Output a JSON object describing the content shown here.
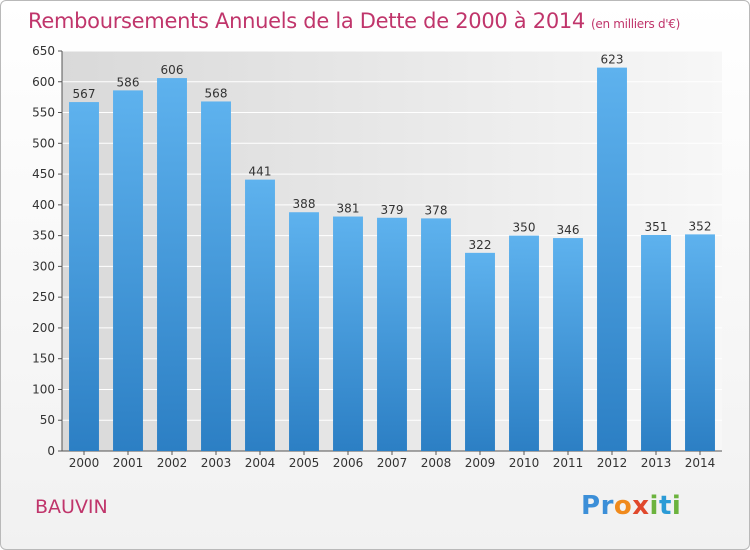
{
  "chart_data": {
    "type": "bar",
    "title": "Remboursements Annuels de la Dette de 2000 à 2014",
    "subtitle": "(en milliers d'€)",
    "categories": [
      "2000",
      "2001",
      "2002",
      "2003",
      "2004",
      "2005",
      "2006",
      "2007",
      "2008",
      "2009",
      "2010",
      "2011",
      "2012",
      "2013",
      "2014"
    ],
    "values": [
      567,
      586,
      606,
      568,
      441,
      388,
      381,
      379,
      378,
      322,
      350,
      346,
      623,
      351,
      352
    ],
    "yticks": [
      0,
      50,
      100,
      150,
      200,
      250,
      300,
      350,
      400,
      450,
      500,
      550,
      600,
      650
    ],
    "ylim": [
      0,
      650
    ],
    "xlabel": "",
    "ylabel": "",
    "grid": true,
    "bar_color": "#4a9de0"
  },
  "footer": {
    "commune": "BAUVIN",
    "logo_text": "Proxiti",
    "logo_letters": [
      "P",
      "r",
      "o",
      "x",
      "i",
      "t",
      "i"
    ],
    "logo_colors": [
      "#3c8fd8",
      "#3c8fd8",
      "#f08a1c",
      "#e0482c",
      "#6cb33e",
      "#2b9bd6",
      "#6cb33e"
    ]
  }
}
